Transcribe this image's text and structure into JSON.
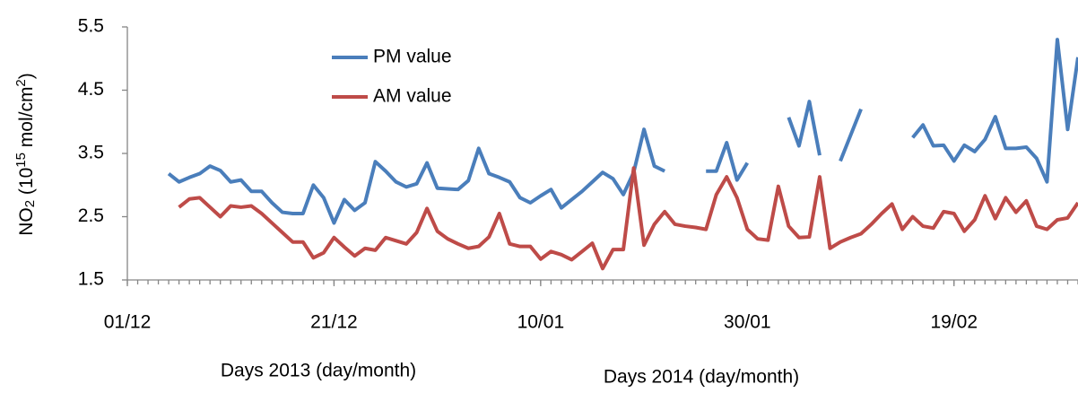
{
  "chart_data": {
    "type": "line",
    "ylabel_parts": [
      "NO",
      "2",
      " (10",
      "15",
      " mol/cm",
      "2",
      ")"
    ],
    "xlabels": [
      "Days 2013 (day/month)",
      "Days 2014 (day/month)"
    ],
    "x": [
      4,
      5,
      6,
      7,
      8,
      9,
      10,
      11,
      12,
      13,
      14,
      15,
      16,
      17,
      18,
      19,
      20,
      21,
      22,
      23,
      24,
      25,
      26,
      27,
      28,
      29,
      30,
      31,
      32,
      33,
      34,
      35,
      36,
      37,
      38,
      39,
      40,
      41,
      42,
      43,
      44,
      45,
      46,
      47,
      48,
      49,
      50,
      51,
      52,
      53,
      54,
      55,
      56,
      57,
      58,
      59,
      60,
      61,
      62,
      63,
      64,
      65,
      66,
      67,
      68,
      69,
      70,
      71,
      72,
      73,
      74,
      75,
      76,
      77,
      78,
      79,
      80,
      81,
      82,
      83,
      84,
      85,
      86,
      87,
      88,
      89,
      90,
      91,
      92
    ],
    "series": [
      {
        "name": "PM value",
        "color": "#4a7ebb",
        "values": [
          3.18,
          3.05,
          3.12,
          3.18,
          3.3,
          3.23,
          3.05,
          3.08,
          2.9,
          2.9,
          2.72,
          2.57,
          2.55,
          2.55,
          3.0,
          2.8,
          2.4,
          2.77,
          2.6,
          2.72,
          3.37,
          3.22,
          3.05,
          2.97,
          3.02,
          3.35,
          2.95,
          2.94,
          2.93,
          3.07,
          3.58,
          3.18,
          3.12,
          3.05,
          2.8,
          2.72,
          2.83,
          2.93,
          2.64,
          2.77,
          2.9,
          3.05,
          3.2,
          3.1,
          2.85,
          3.2,
          3.88,
          3.3,
          3.22,
          null,
          null,
          null,
          3.22,
          3.22,
          3.67,
          3.08,
          3.35,
          null,
          null,
          null,
          4.07,
          3.62,
          4.32,
          3.47,
          null,
          3.38,
          3.79,
          4.2,
          null,
          null,
          null,
          null,
          3.75,
          3.95,
          3.62,
          3.63,
          3.38,
          3.63,
          3.53,
          3.72,
          4.08,
          3.58,
          3.58,
          3.6,
          3.42,
          3.05,
          5.3,
          3.88,
          5.02
        ]
      },
      {
        "name": "AM value",
        "color": "#be4b48",
        "values": [
          null,
          2.65,
          2.78,
          2.8,
          2.65,
          2.5,
          2.67,
          2.65,
          2.67,
          2.55,
          2.4,
          2.25,
          2.1,
          2.1,
          1.85,
          1.93,
          2.17,
          2.02,
          1.88,
          2.0,
          1.97,
          2.17,
          2.12,
          2.07,
          2.25,
          2.63,
          2.27,
          2.15,
          2.07,
          2.0,
          2.03,
          2.18,
          2.55,
          2.07,
          2.03,
          2.03,
          1.83,
          1.95,
          1.9,
          1.82,
          1.95,
          2.08,
          1.68,
          1.98,
          1.98,
          3.27,
          2.05,
          2.38,
          2.58,
          2.38,
          2.35,
          2.33,
          2.3,
          2.85,
          3.13,
          2.8,
          2.3,
          2.15,
          2.13,
          2.98,
          2.35,
          2.17,
          2.18,
          3.13,
          2.0,
          2.1,
          2.17,
          2.23,
          2.38,
          2.55,
          2.7,
          2.3,
          2.5,
          2.35,
          2.32,
          2.58,
          2.55,
          2.27,
          2.45,
          2.83,
          2.47,
          2.8,
          2.57,
          2.75,
          2.35,
          2.3,
          2.45,
          2.48,
          2.72
        ]
      }
    ],
    "xlim": [
      0,
      92
    ],
    "xticks": [
      {
        "value": 0,
        "label": "01/12"
      },
      {
        "value": 20,
        "label": "21/12"
      },
      {
        "value": 40,
        "label": "10/01"
      },
      {
        "value": 60,
        "label": "30/01"
      },
      {
        "value": 80,
        "label": "19/02"
      }
    ],
    "ylim": [
      1.5,
      5.5
    ],
    "yticks": [
      1.5,
      2.5,
      3.5,
      4.5,
      5.5
    ],
    "grid": false,
    "legend": "upper left"
  }
}
